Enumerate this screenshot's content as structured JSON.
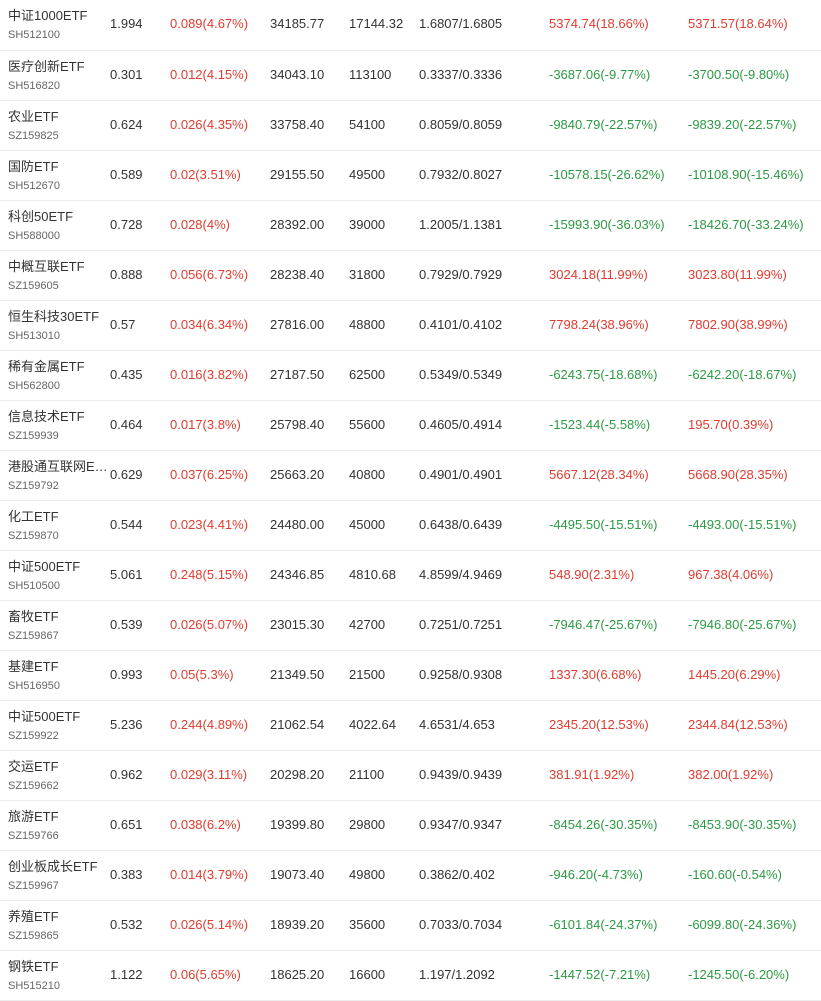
{
  "colors": {
    "up": "#e13b2f",
    "down": "#2c9a44",
    "text": "#333333",
    "subtext": "#666666"
  },
  "rows": [
    {
      "name": "中证1000ETF",
      "code": "SH512100",
      "price": "1.994",
      "change": "0.089(4.67%)",
      "amount": "34185.77",
      "volume": "17144.32",
      "range": "1.6807/1.6805",
      "f1": "5374.74(18.66%)",
      "f2": "5371.57(18.64%)"
    },
    {
      "name": "医疗创新ETF",
      "code": "SH516820",
      "price": "0.301",
      "change": "0.012(4.15%)",
      "amount": "34043.10",
      "volume": "113100",
      "range": "0.3337/0.3336",
      "f1": "-3687.06(-9.77%)",
      "f2": "-3700.50(-9.80%)"
    },
    {
      "name": "农业ETF",
      "code": "SZ159825",
      "price": "0.624",
      "change": "0.026(4.35%)",
      "amount": "33758.40",
      "volume": "54100",
      "range": "0.8059/0.8059",
      "f1": "-9840.79(-22.57%)",
      "f2": "-9839.20(-22.57%)"
    },
    {
      "name": "国防ETF",
      "code": "SH512670",
      "price": "0.589",
      "change": "0.02(3.51%)",
      "amount": "29155.50",
      "volume": "49500",
      "range": "0.7932/0.8027",
      "f1": "-10578.15(-26.62%)",
      "f2": "-10108.90(-15.46%)"
    },
    {
      "name": "科创50ETF",
      "code": "SH588000",
      "price": "0.728",
      "change": "0.028(4%)",
      "amount": "28392.00",
      "volume": "39000",
      "range": "1.2005/1.1381",
      "f1": "-15993.90(-36.03%)",
      "f2": "-18426.70(-33.24%)"
    },
    {
      "name": "中概互联ETF",
      "code": "SZ159605",
      "price": "0.888",
      "change": "0.056(6.73%)",
      "amount": "28238.40",
      "volume": "31800",
      "range": "0.7929/0.7929",
      "f1": "3024.18(11.99%)",
      "f2": "3023.80(11.99%)"
    },
    {
      "name": "恒生科技30ETF",
      "code": "SH513010",
      "price": "0.57",
      "change": "0.034(6.34%)",
      "amount": "27816.00",
      "volume": "48800",
      "range": "0.4101/0.4102",
      "f1": "7798.24(38.96%)",
      "f2": "7802.90(38.99%)"
    },
    {
      "name": "稀有金属ETF",
      "code": "SH562800",
      "price": "0.435",
      "change": "0.016(3.82%)",
      "amount": "27187.50",
      "volume": "62500",
      "range": "0.5349/0.5349",
      "f1": "-6243.75(-18.68%)",
      "f2": "-6242.20(-18.67%)"
    },
    {
      "name": "信息技术ETF",
      "code": "SZ159939",
      "price": "0.464",
      "change": "0.017(3.8%)",
      "amount": "25798.40",
      "volume": "55600",
      "range": "0.4605/0.4914",
      "f1": "-1523.44(-5.58%)",
      "f2": "195.70(0.39%)"
    },
    {
      "name": "港股通互联网ETF",
      "code": "SZ159792",
      "price": "0.629",
      "change": "0.037(6.25%)",
      "amount": "25663.20",
      "volume": "40800",
      "range": "0.4901/0.4901",
      "f1": "5667.12(28.34%)",
      "f2": "5668.90(28.35%)"
    },
    {
      "name": "化工ETF",
      "code": "SZ159870",
      "price": "0.544",
      "change": "0.023(4.41%)",
      "amount": "24480.00",
      "volume": "45000",
      "range": "0.6438/0.6439",
      "f1": "-4495.50(-15.51%)",
      "f2": "-4493.00(-15.51%)"
    },
    {
      "name": "中证500ETF",
      "code": "SH510500",
      "price": "5.061",
      "change": "0.248(5.15%)",
      "amount": "24346.85",
      "volume": "4810.68",
      "range": "4.8599/4.9469",
      "f1": "548.90(2.31%)",
      "f2": "967.38(4.06%)"
    },
    {
      "name": "畜牧ETF",
      "code": "SZ159867",
      "price": "0.539",
      "change": "0.026(5.07%)",
      "amount": "23015.30",
      "volume": "42700",
      "range": "0.7251/0.7251",
      "f1": "-7946.47(-25.67%)",
      "f2": "-7946.80(-25.67%)"
    },
    {
      "name": "基建ETF",
      "code": "SH516950",
      "price": "0.993",
      "change": "0.05(5.3%)",
      "amount": "21349.50",
      "volume": "21500",
      "range": "0.9258/0.9308",
      "f1": "1337.30(6.68%)",
      "f2": "1445.20(6.29%)"
    },
    {
      "name": "中证500ETF",
      "code": "SZ159922",
      "price": "5.236",
      "change": "0.244(4.89%)",
      "amount": "21062.54",
      "volume": "4022.64",
      "range": "4.6531/4.653",
      "f1": "2345.20(12.53%)",
      "f2": "2344.84(12.53%)"
    },
    {
      "name": "交运ETF",
      "code": "SZ159662",
      "price": "0.962",
      "change": "0.029(3.11%)",
      "amount": "20298.20",
      "volume": "21100",
      "range": "0.9439/0.9439",
      "f1": "381.91(1.92%)",
      "f2": "382.00(1.92%)"
    },
    {
      "name": "旅游ETF",
      "code": "SZ159766",
      "price": "0.651",
      "change": "0.038(6.2%)",
      "amount": "19399.80",
      "volume": "29800",
      "range": "0.9347/0.9347",
      "f1": "-8454.26(-30.35%)",
      "f2": "-8453.90(-30.35%)"
    },
    {
      "name": "创业板成长ETF",
      "code": "SZ159967",
      "price": "0.383",
      "change": "0.014(3.79%)",
      "amount": "19073.40",
      "volume": "49800",
      "range": "0.3862/0.402",
      "f1": "-946.20(-4.73%)",
      "f2": "-160.60(-0.54%)"
    },
    {
      "name": "养殖ETF",
      "code": "SZ159865",
      "price": "0.532",
      "change": "0.026(5.14%)",
      "amount": "18939.20",
      "volume": "35600",
      "range": "0.7033/0.7034",
      "f1": "-6101.84(-24.37%)",
      "f2": "-6099.80(-24.36%)"
    },
    {
      "name": "钢铁ETF",
      "code": "SH515210",
      "price": "1.122",
      "change": "0.06(5.65%)",
      "amount": "18625.20",
      "volume": "16600",
      "range": "1.197/1.2092",
      "f1": "-1447.52(-7.21%)",
      "f2": "-1245.50(-6.20%)"
    }
  ]
}
